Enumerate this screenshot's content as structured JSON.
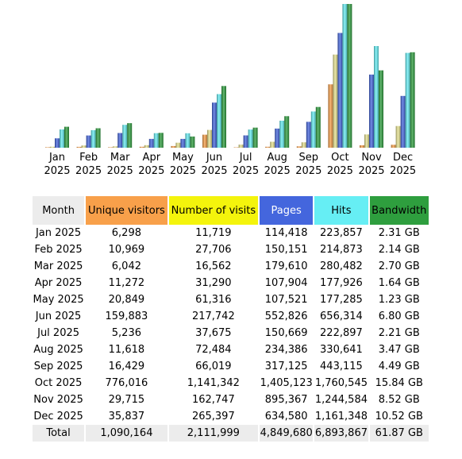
{
  "colors": {
    "unique": "#f8a04a",
    "visits": "#e8e490",
    "pages": "#4466dd",
    "hits": "#66eef4",
    "bandwidth": "#2e9e3e"
  },
  "chart_data": {
    "type": "bar",
    "categories": [
      "Jan 2025",
      "Feb 2025",
      "Mar 2025",
      "Apr 2025",
      "May 2025",
      "Jun 2025",
      "Jul 2025",
      "Aug 2025",
      "Sep 2025",
      "Oct 2025",
      "Nov 2025",
      "Dec 2025"
    ],
    "series": [
      {
        "name": "Unique visitors",
        "values": [
          6298,
          10969,
          6042,
          11272,
          20849,
          159883,
          5236,
          11618,
          16429,
          776016,
          29715,
          35837
        ]
      },
      {
        "name": "Number of visits",
        "values": [
          11719,
          27706,
          16562,
          31290,
          61316,
          217742,
          37675,
          72484,
          66019,
          1141342,
          162747,
          265397
        ]
      },
      {
        "name": "Pages",
        "values": [
          114418,
          150151,
          179610,
          107904,
          107521,
          552826,
          150669,
          234386,
          317125,
          1405123,
          895367,
          634580
        ]
      },
      {
        "name": "Hits",
        "values": [
          223857,
          214873,
          280482,
          177926,
          177285,
          656314,
          222897,
          330641,
          443115,
          1760545,
          1244584,
          1161348
        ]
      },
      {
        "name": "Bandwidth",
        "values": [
          2.31,
          2.14,
          2.7,
          1.64,
          1.23,
          6.8,
          2.21,
          3.47,
          4.49,
          15.84,
          8.52,
          10.52
        ]
      }
    ]
  },
  "table": {
    "headers": {
      "month": "Month",
      "unique": "Unique visitors",
      "visits": "Number of visits",
      "pages": "Pages",
      "hits": "Hits",
      "bandwidth": "Bandwidth"
    },
    "rows": [
      {
        "month": "Jan 2025",
        "unique": "6,298",
        "visits": "11,719",
        "pages": "114,418",
        "hits": "223,857",
        "bandwidth": "2.31 GB"
      },
      {
        "month": "Feb 2025",
        "unique": "10,969",
        "visits": "27,706",
        "pages": "150,151",
        "hits": "214,873",
        "bandwidth": "2.14 GB"
      },
      {
        "month": "Mar 2025",
        "unique": "6,042",
        "visits": "16,562",
        "pages": "179,610",
        "hits": "280,482",
        "bandwidth": "2.70 GB"
      },
      {
        "month": "Apr 2025",
        "unique": "11,272",
        "visits": "31,290",
        "pages": "107,904",
        "hits": "177,926",
        "bandwidth": "1.64 GB"
      },
      {
        "month": "May 2025",
        "unique": "20,849",
        "visits": "61,316",
        "pages": "107,521",
        "hits": "177,285",
        "bandwidth": "1.23 GB"
      },
      {
        "month": "Jun 2025",
        "unique": "159,883",
        "visits": "217,742",
        "pages": "552,826",
        "hits": "656,314",
        "bandwidth": "6.80 GB"
      },
      {
        "month": "Jul 2025",
        "unique": "5,236",
        "visits": "37,675",
        "pages": "150,669",
        "hits": "222,897",
        "bandwidth": "2.21 GB"
      },
      {
        "month": "Aug 2025",
        "unique": "11,618",
        "visits": "72,484",
        "pages": "234,386",
        "hits": "330,641",
        "bandwidth": "3.47 GB"
      },
      {
        "month": "Sep 2025",
        "unique": "16,429",
        "visits": "66,019",
        "pages": "317,125",
        "hits": "443,115",
        "bandwidth": "4.49 GB"
      },
      {
        "month": "Oct 2025",
        "unique": "776,016",
        "visits": "1,141,342",
        "pages": "1,405,123",
        "hits": "1,760,545",
        "bandwidth": "15.84 GB"
      },
      {
        "month": "Nov 2025",
        "unique": "29,715",
        "visits": "162,747",
        "pages": "895,367",
        "hits": "1,244,584",
        "bandwidth": "8.52 GB"
      },
      {
        "month": "Dec 2025",
        "unique": "35,837",
        "visits": "265,397",
        "pages": "634,580",
        "hits": "1,161,348",
        "bandwidth": "10.52 GB"
      }
    ],
    "total": {
      "month": "Total",
      "unique": "1,090,164",
      "visits": "2,111,999",
      "pages": "4,849,680",
      "hits": "6,893,867",
      "bandwidth": "61.87 GB"
    }
  }
}
